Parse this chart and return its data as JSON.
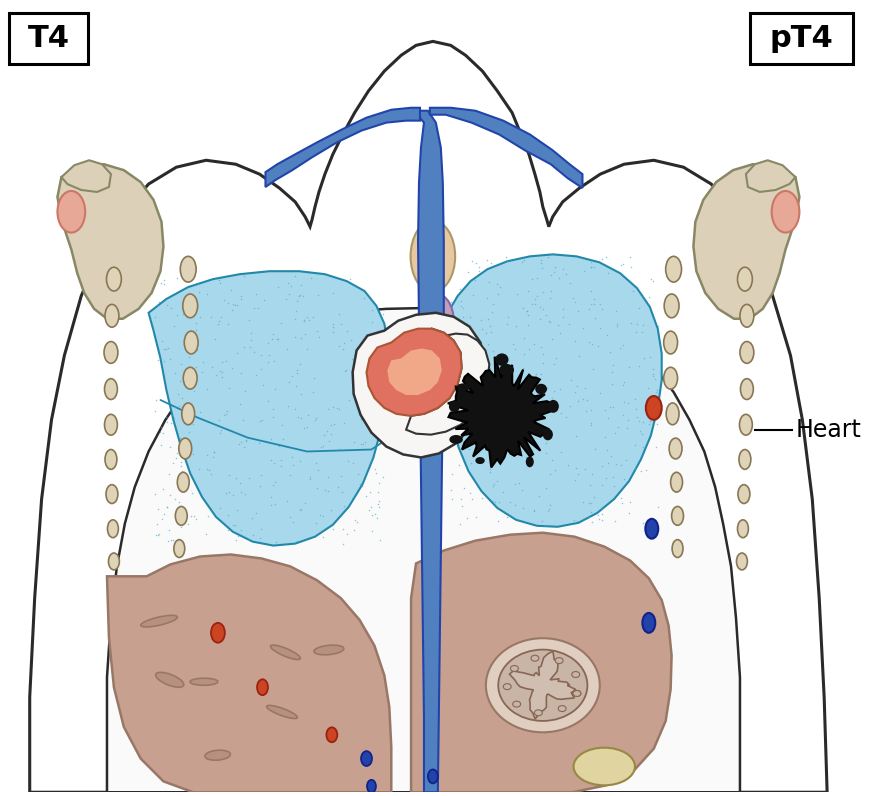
{
  "title_left": "T4",
  "title_right": "pT4",
  "label_heart": "Heart",
  "bg_color": "#ffffff",
  "lung_color": "#a8d8eb",
  "lung_dot_color": "#55aac8",
  "aorta_color": "#5080c0",
  "heart_fill": "#e07060",
  "heart_light": "#f0a888",
  "tumor_color": "#111111",
  "rib_fill": "#ddd0b8",
  "lymph_fill": "#e0d4b8",
  "liver_fill": "#c8a090",
  "body_lw": 2.2
}
